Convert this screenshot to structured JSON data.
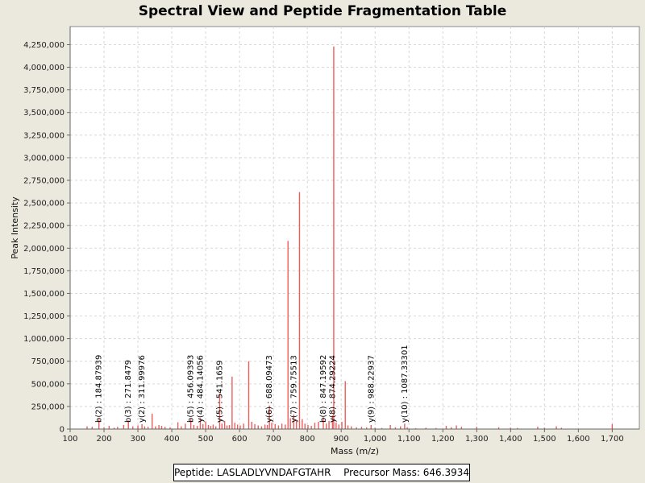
{
  "chart_data": {
    "type": "bar",
    "title": "Spectral View and Peptide Fragmentation Table",
    "xlabel": "Mass (m/z)",
    "ylabel": "Peak Intensity",
    "xlim": [
      100,
      1780
    ],
    "ylim": [
      0,
      4450000
    ],
    "x_ticks": [
      100,
      200,
      300,
      400,
      500,
      600,
      700,
      800,
      900,
      1000,
      1100,
      1200,
      1300,
      1400,
      1500,
      1600,
      1700
    ],
    "x_tick_labels": [
      "100",
      "200",
      "300",
      "400",
      "500",
      "600",
      "700",
      "800",
      "900",
      "1,000",
      "1,100",
      "1,200",
      "1,300",
      "1,400",
      "1,500",
      "1,600",
      "1,700"
    ],
    "y_ticks": [
      0,
      250000,
      500000,
      750000,
      1000000,
      1250000,
      1500000,
      1750000,
      2000000,
      2250000,
      2500000,
      2750000,
      3000000,
      3250000,
      3500000,
      3750000,
      4000000,
      4250000
    ],
    "y_tick_labels": [
      "0",
      "250,000",
      "500,000",
      "750,000",
      "1,000,000",
      "1,250,000",
      "1,500,000",
      "1,750,000",
      "2,000,000",
      "2,250,000",
      "2,500,000",
      "2,750,000",
      "3,000,000",
      "3,250,000",
      "3,500,000",
      "3,750,000",
      "4,000,000",
      "4,250,000"
    ],
    "grid": true,
    "bar_color": "#ee5c5c",
    "peaks": [
      {
        "mz": 150,
        "i": 30000
      },
      {
        "mz": 165,
        "i": 25000
      },
      {
        "mz": 184.9,
        "i": 110000
      },
      {
        "mz": 200,
        "i": 20000
      },
      {
        "mz": 215,
        "i": 35000
      },
      {
        "mz": 230,
        "i": 15000
      },
      {
        "mz": 240,
        "i": 25000
      },
      {
        "mz": 258,
        "i": 45000
      },
      {
        "mz": 271.8,
        "i": 95000
      },
      {
        "mz": 285,
        "i": 30000
      },
      {
        "mz": 300,
        "i": 40000
      },
      {
        "mz": 312,
        "i": 55000
      },
      {
        "mz": 320,
        "i": 30000
      },
      {
        "mz": 330,
        "i": 25000
      },
      {
        "mz": 342,
        "i": 170000
      },
      {
        "mz": 352,
        "i": 30000
      },
      {
        "mz": 362,
        "i": 45000
      },
      {
        "mz": 370,
        "i": 35000
      },
      {
        "mz": 380,
        "i": 25000
      },
      {
        "mz": 395,
        "i": 20000
      },
      {
        "mz": 418,
        "i": 75000
      },
      {
        "mz": 428,
        "i": 30000
      },
      {
        "mz": 440,
        "i": 60000
      },
      {
        "mz": 456.1,
        "i": 110000
      },
      {
        "mz": 465,
        "i": 45000
      },
      {
        "mz": 475,
        "i": 35000
      },
      {
        "mz": 484.1,
        "i": 120000
      },
      {
        "mz": 492,
        "i": 55000
      },
      {
        "mz": 500,
        "i": 85000
      },
      {
        "mz": 508,
        "i": 45000
      },
      {
        "mz": 515,
        "i": 35000
      },
      {
        "mz": 522,
        "i": 50000
      },
      {
        "mz": 530,
        "i": 30000
      },
      {
        "mz": 541.2,
        "i": 390000
      },
      {
        "mz": 548,
        "i": 60000
      },
      {
        "mz": 556,
        "i": 90000
      },
      {
        "mz": 563,
        "i": 40000
      },
      {
        "mz": 570,
        "i": 45000
      },
      {
        "mz": 578,
        "i": 580000
      },
      {
        "mz": 586,
        "i": 70000
      },
      {
        "mz": 594,
        "i": 50000
      },
      {
        "mz": 602,
        "i": 40000
      },
      {
        "mz": 612,
        "i": 60000
      },
      {
        "mz": 627,
        "i": 750000
      },
      {
        "mz": 636,
        "i": 80000
      },
      {
        "mz": 645,
        "i": 55000
      },
      {
        "mz": 655,
        "i": 40000
      },
      {
        "mz": 665,
        "i": 30000
      },
      {
        "mz": 675,
        "i": 50000
      },
      {
        "mz": 682,
        "i": 45000
      },
      {
        "mz": 688.1,
        "i": 260000
      },
      {
        "mz": 695,
        "i": 70000
      },
      {
        "mz": 705,
        "i": 55000
      },
      {
        "mz": 715,
        "i": 40000
      },
      {
        "mz": 725,
        "i": 60000
      },
      {
        "mz": 735,
        "i": 50000
      },
      {
        "mz": 743,
        "i": 2080000
      },
      {
        "mz": 750,
        "i": 120000
      },
      {
        "mz": 759.8,
        "i": 160000
      },
      {
        "mz": 768,
        "i": 90000
      },
      {
        "mz": 777,
        "i": 2620000
      },
      {
        "mz": 785,
        "i": 110000
      },
      {
        "mz": 793,
        "i": 60000
      },
      {
        "mz": 802,
        "i": 45000
      },
      {
        "mz": 812,
        "i": 35000
      },
      {
        "mz": 822,
        "i": 70000
      },
      {
        "mz": 833,
        "i": 80000
      },
      {
        "mz": 847.2,
        "i": 130000
      },
      {
        "mz": 856,
        "i": 60000
      },
      {
        "mz": 864,
        "i": 90000
      },
      {
        "mz": 874.3,
        "i": 150000
      },
      {
        "mz": 878,
        "i": 4230000
      },
      {
        "mz": 885,
        "i": 70000
      },
      {
        "mz": 893,
        "i": 50000
      },
      {
        "mz": 902,
        "i": 80000
      },
      {
        "mz": 912,
        "i": 530000
      },
      {
        "mz": 920,
        "i": 40000
      },
      {
        "mz": 930,
        "i": 30000
      },
      {
        "mz": 945,
        "i": 20000
      },
      {
        "mz": 960,
        "i": 25000
      },
      {
        "mz": 975,
        "i": 18000
      },
      {
        "mz": 988.2,
        "i": 45000
      },
      {
        "mz": 1000,
        "i": 15000
      },
      {
        "mz": 1020,
        "i": 12000
      },
      {
        "mz": 1045,
        "i": 45000
      },
      {
        "mz": 1060,
        "i": 20000
      },
      {
        "mz": 1075,
        "i": 30000
      },
      {
        "mz": 1087.3,
        "i": 60000
      },
      {
        "mz": 1095,
        "i": 20000
      },
      {
        "mz": 1120,
        "i": 10000
      },
      {
        "mz": 1150,
        "i": 15000
      },
      {
        "mz": 1180,
        "i": 12000
      },
      {
        "mz": 1210,
        "i": 35000
      },
      {
        "mz": 1225,
        "i": 20000
      },
      {
        "mz": 1240,
        "i": 40000
      },
      {
        "mz": 1255,
        "i": 25000
      },
      {
        "mz": 1300,
        "i": 25000
      },
      {
        "mz": 1365,
        "i": 20000
      },
      {
        "mz": 1400,
        "i": 15000
      },
      {
        "mz": 1420,
        "i": 12000
      },
      {
        "mz": 1480,
        "i": 25000
      },
      {
        "mz": 1500,
        "i": 15000
      },
      {
        "mz": 1535,
        "i": 30000
      },
      {
        "mz": 1550,
        "i": 15000
      },
      {
        "mz": 1700,
        "i": 55000
      }
    ],
    "annotations": [
      {
        "mz": 184.87939,
        "label": "b(2) : 184.87939"
      },
      {
        "mz": 271.8479,
        "label": "b(3) : 271.8479"
      },
      {
        "mz": 311.99976,
        "label": "y(2) : 311.99976"
      },
      {
        "mz": 456.09393,
        "label": "b(5) : 456.09393"
      },
      {
        "mz": 484.14056,
        "label": "y(4) : 484.14056"
      },
      {
        "mz": 541.1659,
        "label": "y(5) : 541.1659"
      },
      {
        "mz": 688.09473,
        "label": "y(6) : 688.09473"
      },
      {
        "mz": 759.75513,
        "label": "y(7) : 759.75513"
      },
      {
        "mz": 847.19592,
        "label": "b(8) : 847.19592"
      },
      {
        "mz": 874.29224,
        "label": "y(8) : 874.29224"
      },
      {
        "mz": 988.22937,
        "label": "y(9) : 988.22937"
      },
      {
        "mz": 1087.33301,
        "label": "y(10) : 1087.33301"
      }
    ]
  },
  "legend": {
    "peptide": "Peptide: LASLADLYVNDAFGTAHR",
    "precursor": "Precursor Mass: 646.3934"
  }
}
